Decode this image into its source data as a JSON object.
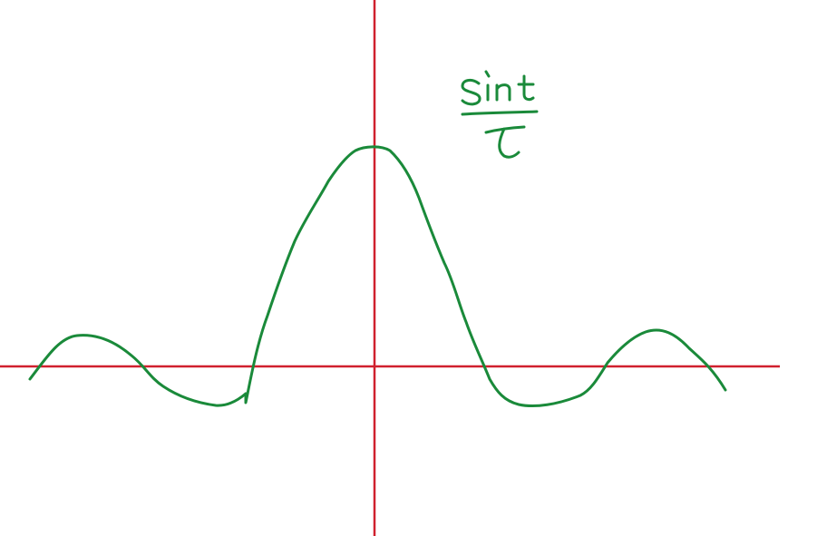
{
  "sketch": {
    "label_numerator": "sin t",
    "label_denominator": "t",
    "colors": {
      "curve": "#1a8a3a",
      "axes": "#d0202e",
      "background": "#ffffff"
    }
  }
}
